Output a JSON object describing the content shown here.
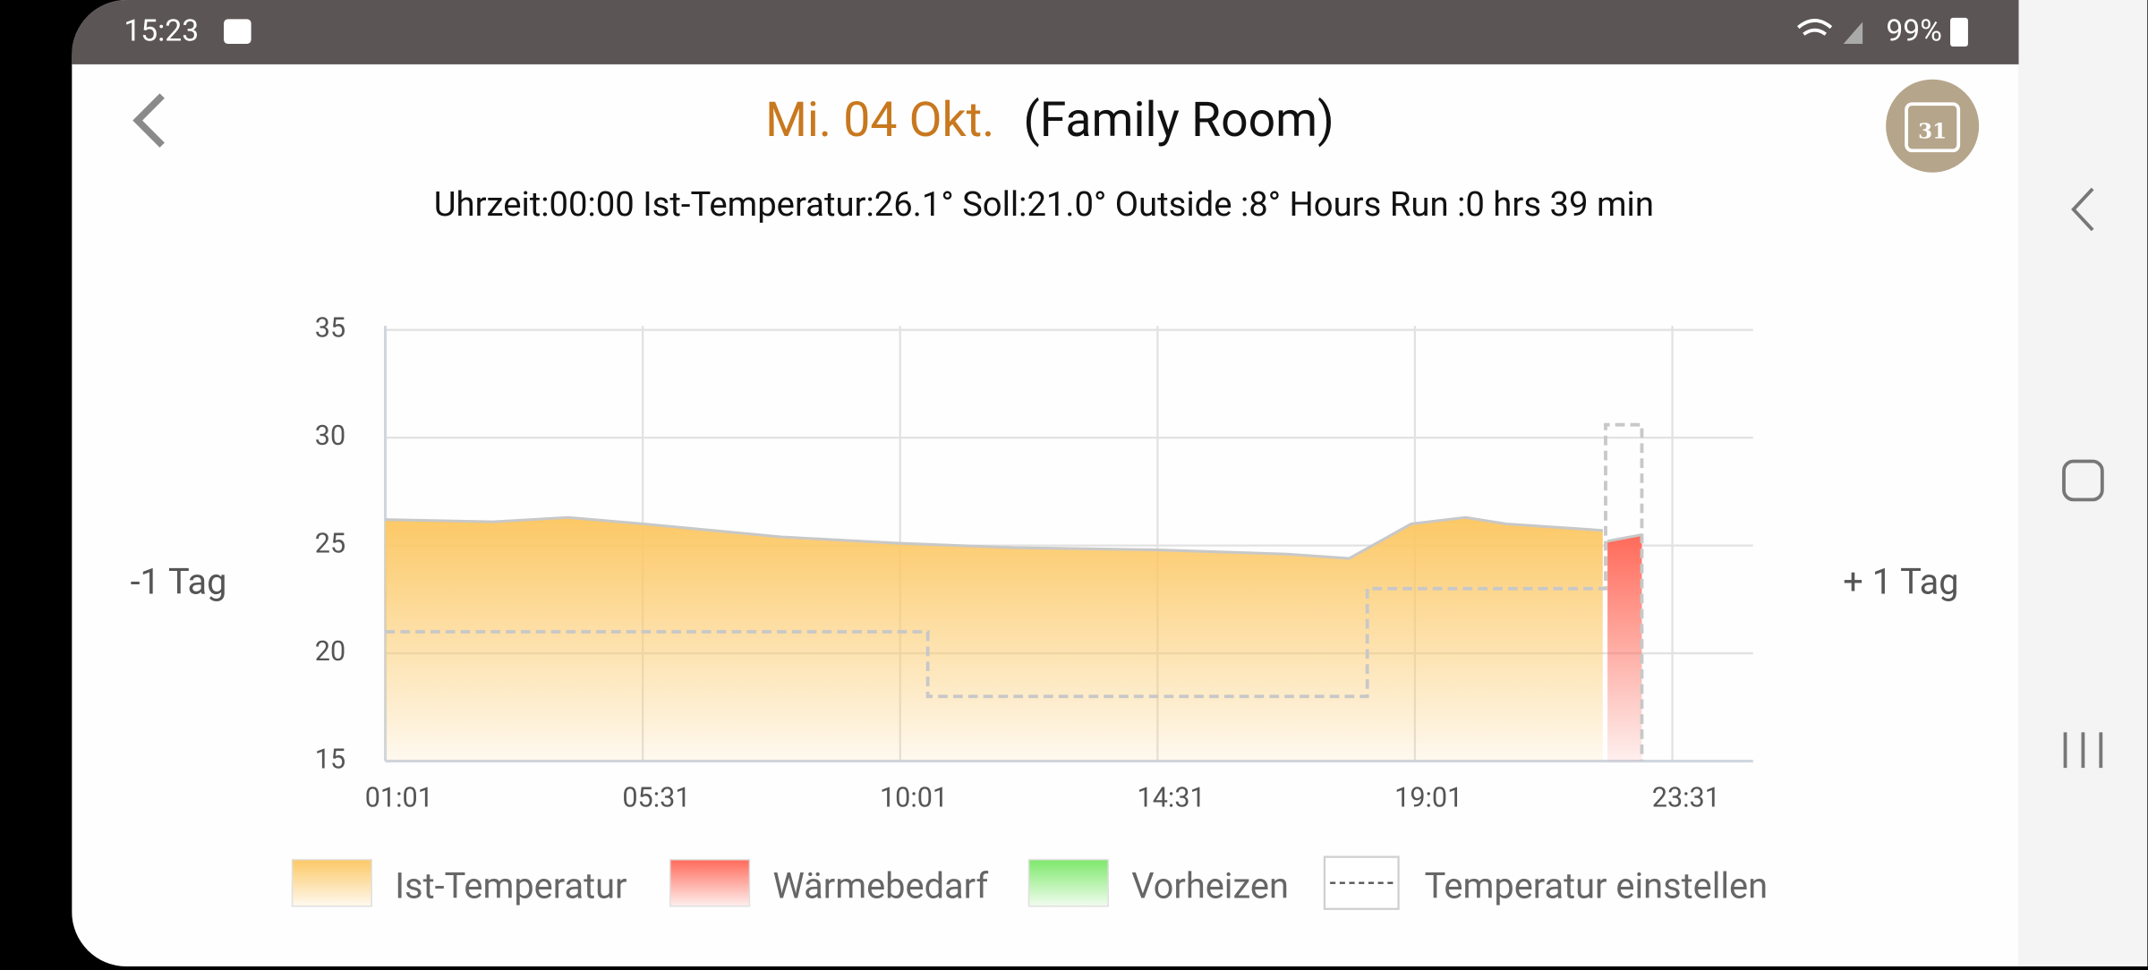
{
  "status_bar": {
    "time": "15:23",
    "battery": "99%"
  },
  "header": {
    "date": "Mi. 04 Okt.",
    "room": "(Family Room)",
    "calendar_day": "31"
  },
  "info": "Uhrzeit:00:00 Ist-Temperatur:26.1° Soll:21.0° Outside :8° Hours Run :0 hrs 39 min",
  "navigation": {
    "previous": "-1 Tag",
    "next": "+ 1 Tag"
  },
  "chart_data": {
    "type": "area",
    "xlim": [
      61,
      1500
    ],
    "ylim": [
      15,
      35
    ],
    "xticks": [
      {
        "value": 61,
        "label": "01:01"
      },
      {
        "value": 331,
        "label": "05:31"
      },
      {
        "value": 601,
        "label": "10:01"
      },
      {
        "value": 871,
        "label": "14:31"
      },
      {
        "value": 1141,
        "label": "19:01"
      },
      {
        "value": 1411,
        "label": "23:31"
      }
    ],
    "yticks": [
      15,
      20,
      25,
      30,
      35
    ],
    "grid": true,
    "series": [
      {
        "name": "Ist-Temperatur",
        "color": "#fcc865",
        "mark": "area",
        "x": [
          61,
          174,
          253,
          332,
          476,
          601,
          720,
          868,
          1007,
          1072,
          1137,
          1194,
          1237,
          1338
        ],
        "values": [
          26.2,
          26.1,
          26.3,
          26.0,
          25.4,
          25.1,
          24.9,
          24.8,
          24.6,
          24.4,
          26.0,
          26.3,
          26.0,
          25.7
        ]
      },
      {
        "name": "Wärmebedarf",
        "color": "#ff6a5a",
        "mark": "area",
        "x": [
          1343,
          1379
        ],
        "values": [
          25.2,
          25.5
        ]
      },
      {
        "name": "Vorheizen",
        "color": "#7de86a",
        "mark": "area",
        "x": [],
        "values": []
      },
      {
        "name": "Temperatur einstellen",
        "color": "#c8c8c8",
        "mark": "dashed-line",
        "x": [
          61,
          630,
          630,
          1091,
          1091,
          1341,
          1341,
          1379,
          1379
        ],
        "values": [
          21,
          21,
          18,
          18,
          23,
          23,
          30.6,
          30.6,
          15
        ]
      }
    ]
  }
}
